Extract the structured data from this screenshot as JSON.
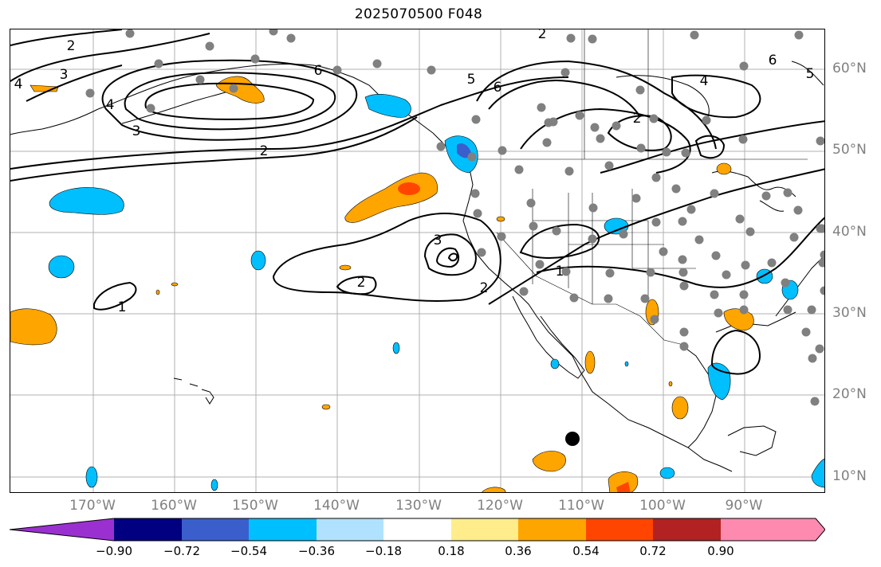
{
  "title": "2025070500 F048",
  "lat_labels": [
    "60°N",
    "50°N",
    "40°N",
    "30°N",
    "20°N",
    "10°N"
  ],
  "lon_labels": [
    "170°W",
    "160°W",
    "150°W",
    "140°W",
    "130°W",
    "120°W",
    "110°W",
    "100°W",
    "90°W"
  ],
  "contour_labels": [
    "2",
    "3",
    "4",
    "3",
    "2",
    "6",
    "5",
    "6",
    "2",
    "2",
    "3",
    "4",
    "1",
    "2",
    "2",
    "1",
    "6",
    "5",
    "4"
  ],
  "colorbar": {
    "ticks": [
      "−0.90",
      "−0.72",
      "−0.54",
      "−0.36",
      "−0.18",
      "0.18",
      "0.36",
      "0.54",
      "0.72",
      "0.90"
    ],
    "colors": [
      "#9b30d0",
      "#000080",
      "#3a5fcd",
      "#00bfff",
      "#b0e2ff",
      "#ffffff",
      "#ffec8b",
      "#ffa500",
      "#ff4500",
      "#b22222",
      "#ff8ab0"
    ]
  },
  "colors": {
    "positive_fill": "#ffa500",
    "positive_core": "#ff4500",
    "negative_fill": "#00bfff",
    "negative_core": "#3a5fcd",
    "station_dot": "#808080",
    "grid": "#b0b0b0",
    "axis_label": "#808080"
  }
}
